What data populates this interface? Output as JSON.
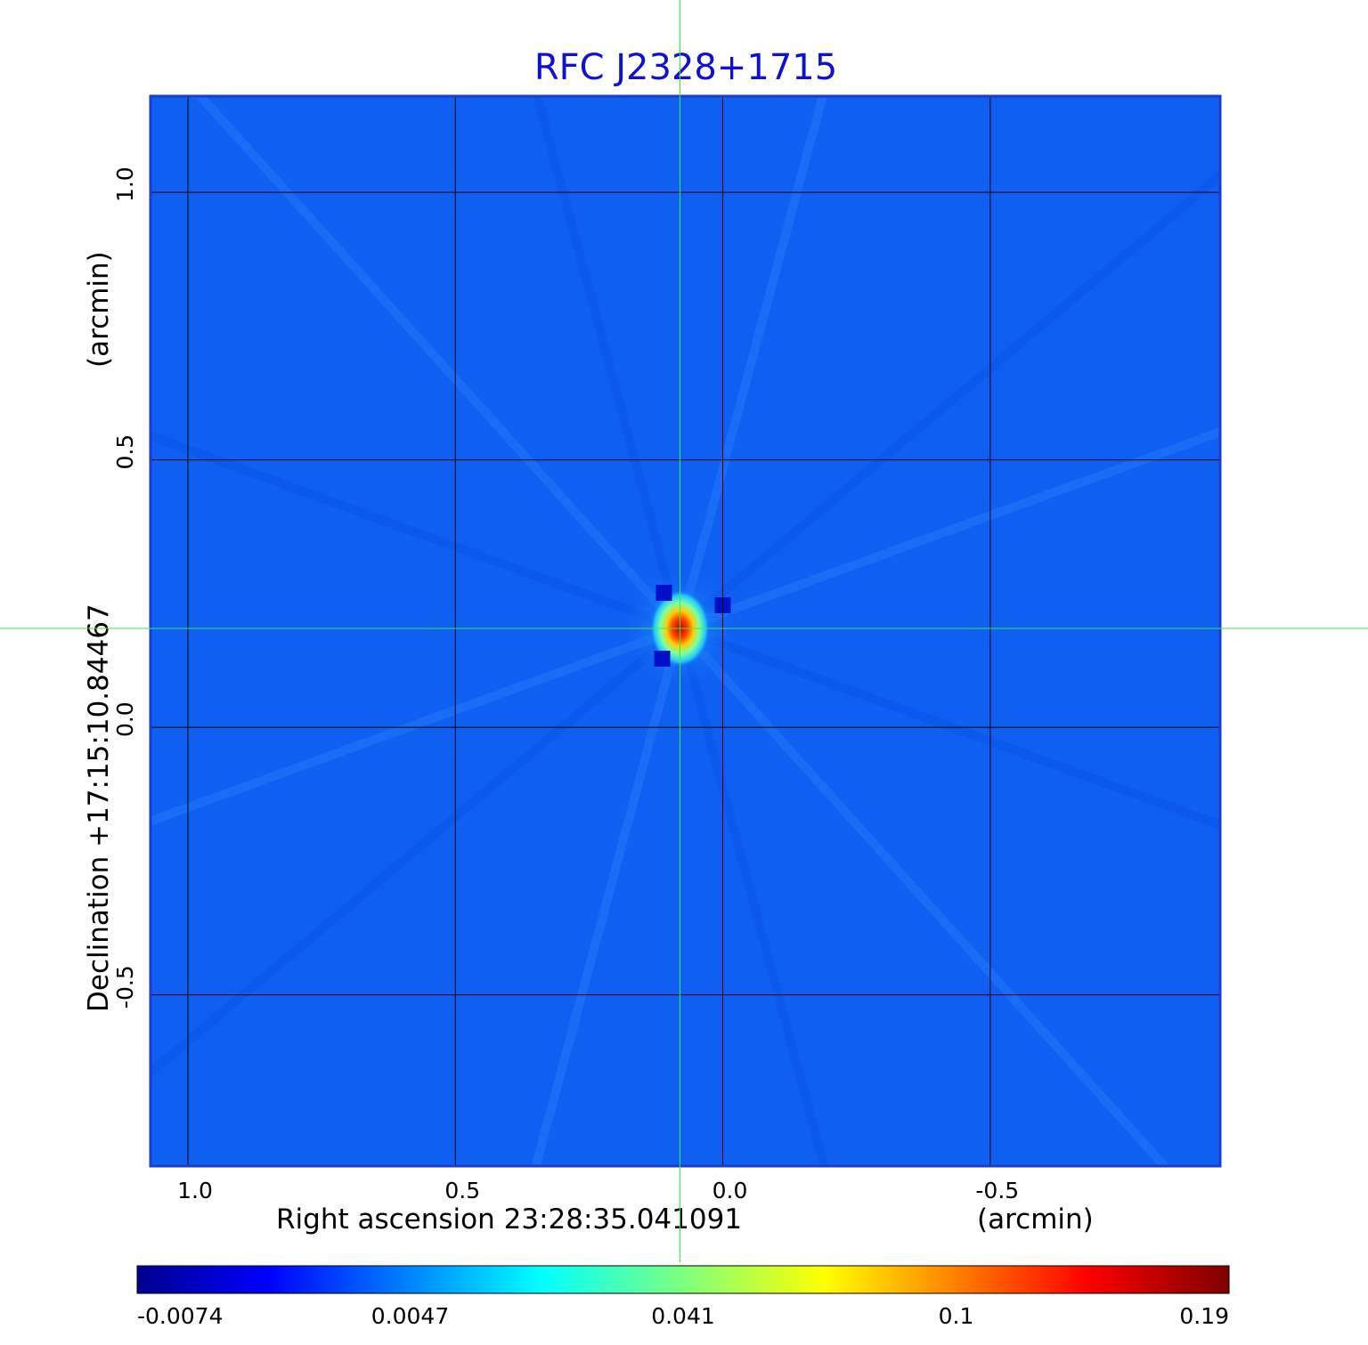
{
  "chart_data": {
    "type": "heatmap",
    "title": "RFC J2328+1715",
    "xlabel": "Right ascension  23:28:35.041091",
    "xunit": "(arcmin)",
    "ylabel": "Declination  +17:15:10.84467",
    "yunit": "(arcmin)",
    "x_ticks": [
      1.0,
      0.5,
      0.0,
      -0.5
    ],
    "x_tick_labels": [
      "1.0",
      "0.5",
      "0.0",
      "-0.5"
    ],
    "y_ticks": [
      1.0,
      0.5,
      0.0,
      -0.5
    ],
    "y_tick_labels": [
      "1.0",
      "0.5",
      "0.0",
      "-0.5"
    ],
    "xlim": [
      1.07,
      -0.93
    ],
    "ylim": [
      -0.82,
      1.18
    ],
    "x_direction": "decreasing",
    "grid": true,
    "peak": {
      "x": 0.08,
      "y": 0.185,
      "value": 0.19
    },
    "crosshair": {
      "x": 0.08,
      "y": 0.185
    },
    "colorbar": {
      "ticks": [
        -0.0074,
        0.0047,
        0.041,
        0.1,
        0.19
      ],
      "tick_labels": [
        "-0.0074",
        "0.0047",
        "0.041",
        "0.1",
        "0.19"
      ],
      "colormap": "jet",
      "placement": "bottom"
    }
  },
  "colors": {
    "title": "#1010d0",
    "background_field": "#0f5ff2",
    "frame": "#1a3ccf",
    "grid": "#000000",
    "crosshair": "#33ee44",
    "text": "#000000"
  }
}
